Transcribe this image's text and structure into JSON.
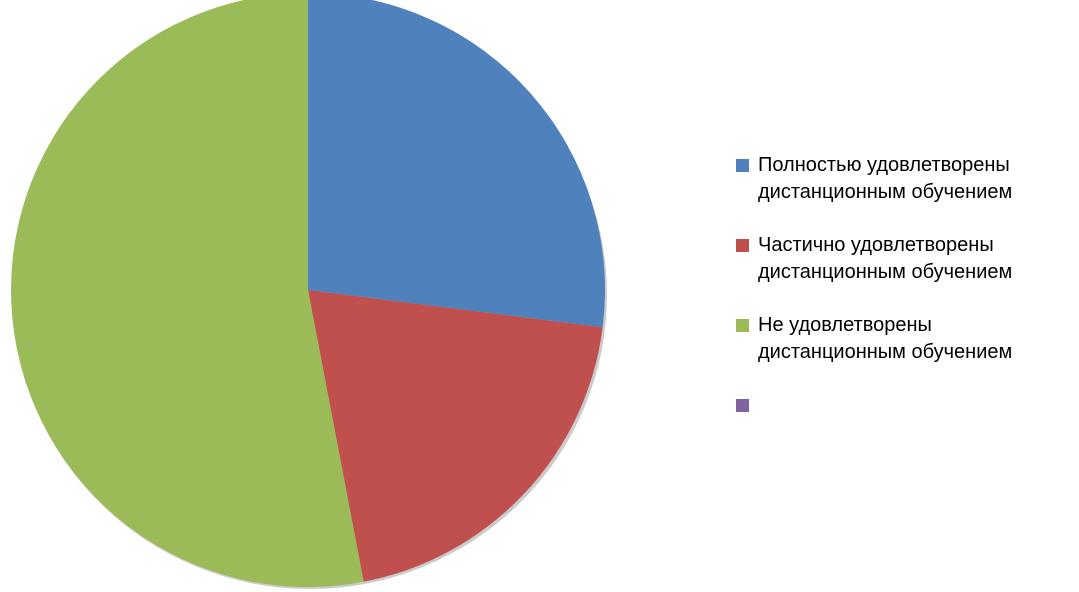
{
  "chart_data": {
    "type": "pie",
    "categories": [
      "Полностью удовлетворены дистанционным обучением",
      "Частично удовлетворены дистанционным обучением",
      "Не удовлетворены дистанционным обучением",
      null
    ],
    "values": [
      27,
      20,
      53,
      null
    ],
    "colors": [
      "#4f81bd",
      "#c0504d",
      "#9bbb59",
      "#8064a2"
    ],
    "legend": "right"
  }
}
